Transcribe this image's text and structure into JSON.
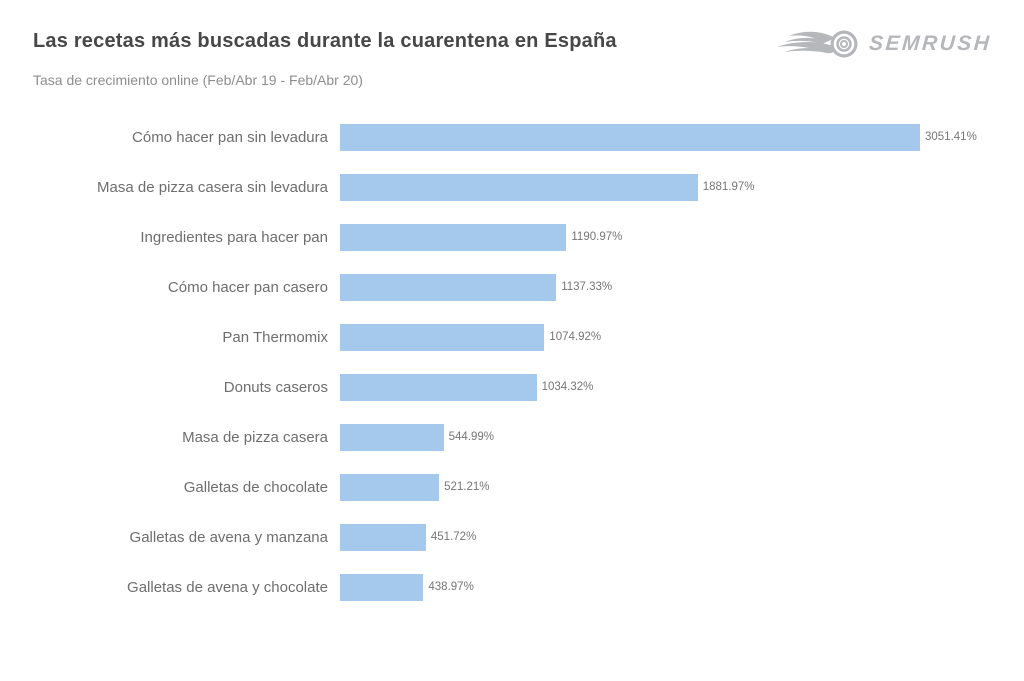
{
  "header": {
    "title": "Las recetas más buscadas durante la cuarentena en España",
    "subtitle": "Tasa de crecimiento online (Feb/Abr 19 - Feb/Abr 20)",
    "logo_text": "SEMRUSH",
    "logo_icon": "semrush-flame-ball-icon"
  },
  "colors": {
    "background": "#FFFFFF",
    "bar": "#A4C9EC",
    "title_text": "#474747",
    "subtitle_text": "#8D8D8D",
    "category_text": "#6E6E6E",
    "value_text": "#757575",
    "logo_gray": "#B5B7BA"
  },
  "chart_data": {
    "type": "bar",
    "orientation": "horizontal",
    "title": "Las recetas más buscadas durante la cuarentena en España",
    "subtitle": "Tasa de crecimiento online (Feb/Abr 19 - Feb/Abr 20)",
    "categories": [
      "Cómo hacer pan sin levadura",
      "Masa de pizza casera sin levadura",
      "Ingredientes para hacer pan",
      "Cómo hacer pan casero",
      "Pan Thermomix",
      "Donuts caseros",
      "Masa de pizza casera",
      "Galletas de chocolate",
      "Galletas de avena y manzana",
      "Galletas de avena y chocolate"
    ],
    "values": [
      3051.41,
      1881.97,
      1190.97,
      1137.33,
      1074.92,
      1034.32,
      544.99,
      521.21,
      451.72,
      438.97
    ],
    "value_labels": [
      "3051.41%",
      "1881.97%",
      "1190.97%",
      "1137.33%",
      "1074.92%",
      "1034.32%",
      "544.99%",
      "521.21%",
      "451.72%",
      "438.97%"
    ],
    "xlim": [
      0,
      3051.41
    ],
    "xlabel": "",
    "ylabel": "",
    "grid": false,
    "legend": false,
    "bar_color": "#A4C9EC",
    "value_suffix": "%"
  }
}
